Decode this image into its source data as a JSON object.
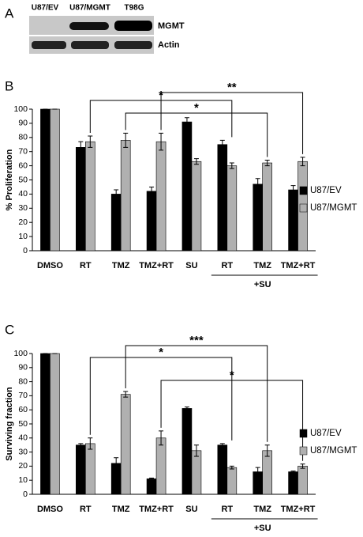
{
  "panel_a": {
    "label": "A",
    "lanes": [
      "U87/EV",
      "U87/MGMT",
      "T98G"
    ],
    "bands": [
      "MGMT",
      "Actin"
    ]
  },
  "chart_data": [
    {
      "type": "bar",
      "panel": "B",
      "ylabel": "% Proliferation",
      "categories": [
        "DMSO",
        "RT",
        "TMZ",
        "TMZ+RT",
        "SU",
        "RT",
        "TMZ",
        "TMZ+RT"
      ],
      "groups": [
        {
          "label": "+SU",
          "from": 5,
          "to": 7
        }
      ],
      "series": [
        {
          "name": "U87/EV",
          "color": "#000000",
          "values": [
            100,
            73,
            40,
            42,
            91,
            75,
            47,
            43
          ],
          "errors": [
            0,
            4,
            3,
            3,
            3,
            3,
            4,
            3
          ]
        },
        {
          "name": "U87/MGMT",
          "color": "#b0b0b0",
          "values": [
            100,
            77,
            78,
            77,
            63,
            60,
            62,
            63
          ],
          "errors": [
            0,
            4,
            5,
            6,
            2,
            2,
            2,
            3
          ]
        }
      ],
      "ylim": [
        0,
        100
      ],
      "yticks": [
        0,
        10,
        20,
        30,
        40,
        50,
        60,
        70,
        80,
        90,
        100
      ],
      "annotations": [
        {
          "text": "*",
          "from": 1,
          "to": 5
        },
        {
          "text": "**",
          "from": 3,
          "to": 7
        },
        {
          "text": "*",
          "from": 2,
          "to": 6
        }
      ]
    },
    {
      "type": "bar",
      "panel": "C",
      "ylabel": "Surviving fraction",
      "categories": [
        "DMSO",
        "RT",
        "TMZ",
        "TMZ+RT",
        "SU",
        "RT",
        "TMZ",
        "TMZ+RT"
      ],
      "groups": [
        {
          "label": "+SU",
          "from": 5,
          "to": 7
        }
      ],
      "series": [
        {
          "name": "U87/EV",
          "color": "#000000",
          "values": [
            100,
            35,
            22,
            11,
            61,
            35,
            16,
            16
          ],
          "errors": [
            0,
            1,
            4,
            0.5,
            1,
            1,
            3,
            0.5
          ]
        },
        {
          "name": "U87/MGMT",
          "color": "#b0b0b0",
          "values": [
            100,
            36,
            71,
            40,
            31,
            19,
            31,
            20
          ],
          "errors": [
            0,
            4,
            2,
            5,
            4,
            1,
            4,
            1.5
          ]
        }
      ],
      "ylim": [
        0,
        100
      ],
      "yticks": [
        0,
        10,
        20,
        30,
        40,
        50,
        60,
        70,
        80,
        90,
        100
      ],
      "annotations": [
        {
          "text": "***",
          "from": 2,
          "to": 6
        },
        {
          "text": "*",
          "from": 1,
          "to": 5
        },
        {
          "text": "*",
          "from": 3,
          "to": 7
        }
      ]
    }
  ]
}
